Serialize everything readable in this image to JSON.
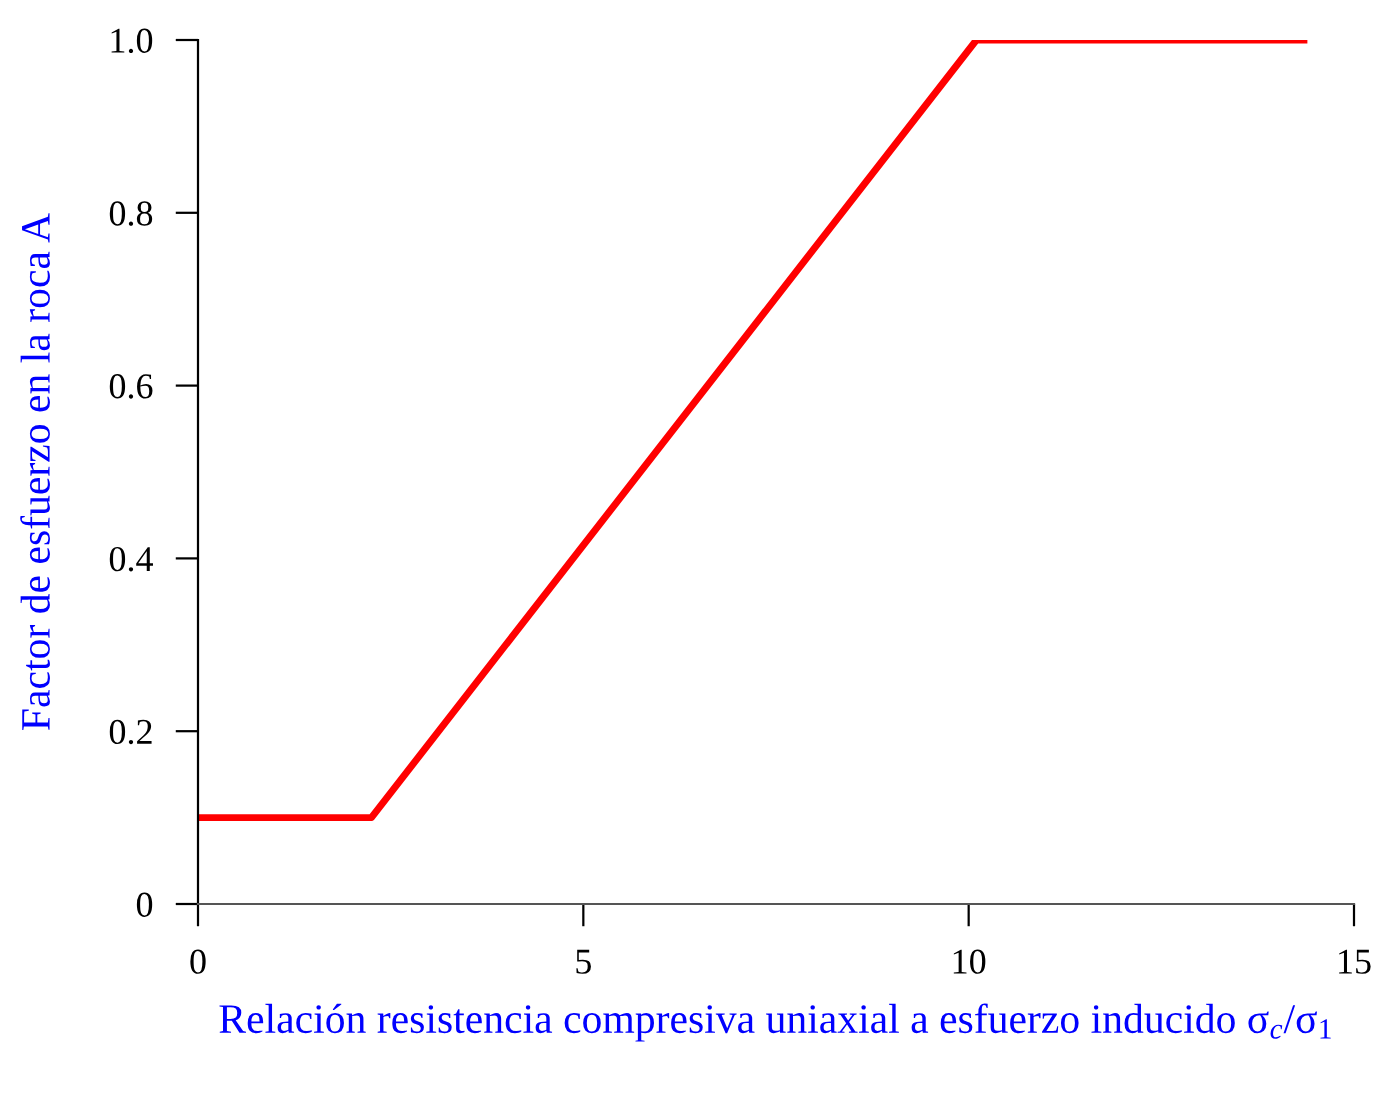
{
  "chart_data": {
    "type": "line",
    "xlabel": "Relación resistencia compresiva uniaxial a esfuerzo inducido σ$_{c}$/σ$_{1}$",
    "ylabel": "Factor de esfuerzo en la roca A",
    "x": [
      0,
      2.25,
      10.1,
      14.35
    ],
    "series": [
      {
        "color": "#ff0000",
        "values": [
          0.1,
          0.1,
          1.0,
          1.0
        ]
      }
    ],
    "xlim": [
      0,
      15
    ],
    "xticks": [
      0,
      5,
      10,
      15
    ],
    "ylim": [
      0,
      1.0
    ],
    "yticks": [
      0,
      0.2,
      0.4,
      0.6,
      0.8,
      {
        "value": 1.0,
        "label": "1.0"
      }
    ],
    "grid": false,
    "legend": false,
    "marker": "none",
    "line_style": "solid"
  }
}
